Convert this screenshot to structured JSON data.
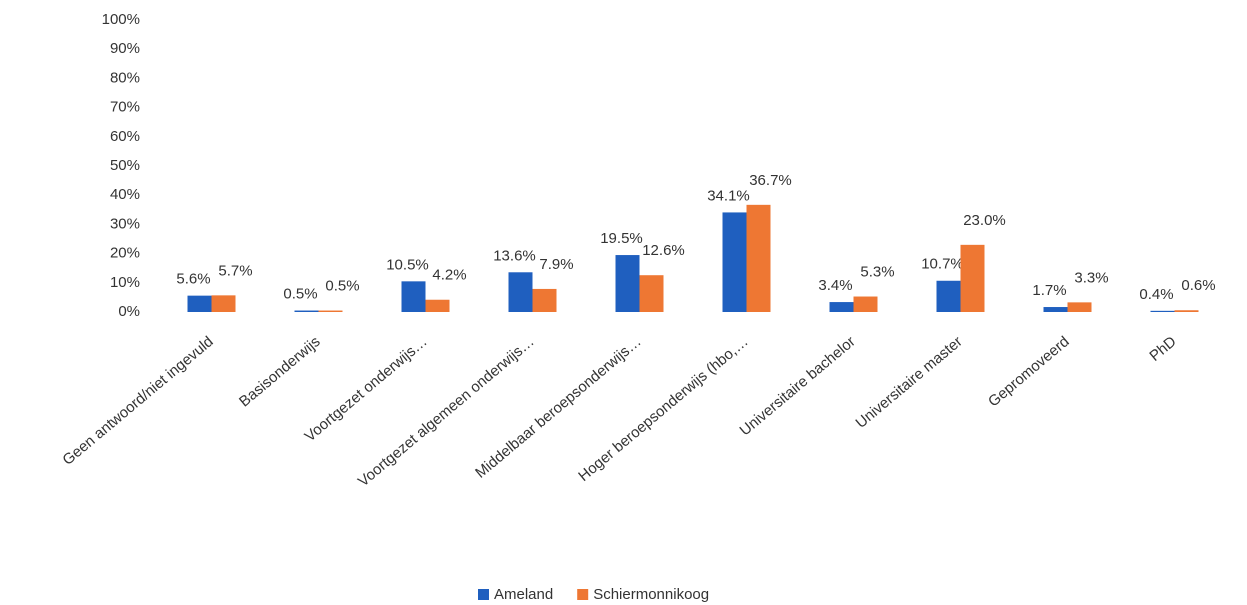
{
  "chart_data": {
    "type": "bar",
    "categories": [
      "Geen antwoord/niet ingevuld",
      "Basisonderwijs",
      "Voortgezet onderwijs…",
      "Voortgezet algemeen onderwijs…",
      "Middelbaar beroepsonderwijs…",
      "Hoger beroepsonderwijs (hbo,…",
      "Universitaire bachelor",
      "Universitaire master",
      "Gepromoveerd",
      "PhD"
    ],
    "series": [
      {
        "name": "Ameland",
        "color": "#1f5fbf",
        "values": [
          5.6,
          0.5,
          10.5,
          13.6,
          19.5,
          34.1,
          3.4,
          10.7,
          1.7,
          0.4
        ],
        "value_labels": [
          "5.6%",
          "0.5%",
          "10.5%",
          "13.6%",
          "19.5%",
          "34.1%",
          "3.4%",
          "10.7%",
          "1.7%",
          "0.4%"
        ]
      },
      {
        "name": "Schiermonnikoog",
        "color": "#ee7733",
        "values": [
          5.7,
          0.5,
          4.2,
          7.9,
          12.6,
          36.7,
          5.3,
          23.0,
          3.3,
          0.6
        ],
        "value_labels": [
          "5.7%",
          "0.5%",
          "4.2%",
          "7.9%",
          "12.6%",
          "36.7%",
          "5.3%",
          "23.0%",
          "3.3%",
          "0.6%"
        ]
      }
    ],
    "ylim": [
      0,
      100
    ],
    "yticks": [
      {
        "value": 0,
        "label": "0%"
      },
      {
        "value": 10,
        "label": "10%"
      },
      {
        "value": 20,
        "label": "20%"
      },
      {
        "value": 30,
        "label": "30%"
      },
      {
        "value": 40,
        "label": "40%"
      },
      {
        "value": 50,
        "label": "50%"
      },
      {
        "value": 60,
        "label": "60%"
      },
      {
        "value": 70,
        "label": "70%"
      },
      {
        "value": 80,
        "label": "80%"
      },
      {
        "value": 90,
        "label": "90%"
      },
      {
        "value": 100,
        "label": "100%"
      }
    ],
    "grid": false,
    "legend": "bottom"
  }
}
